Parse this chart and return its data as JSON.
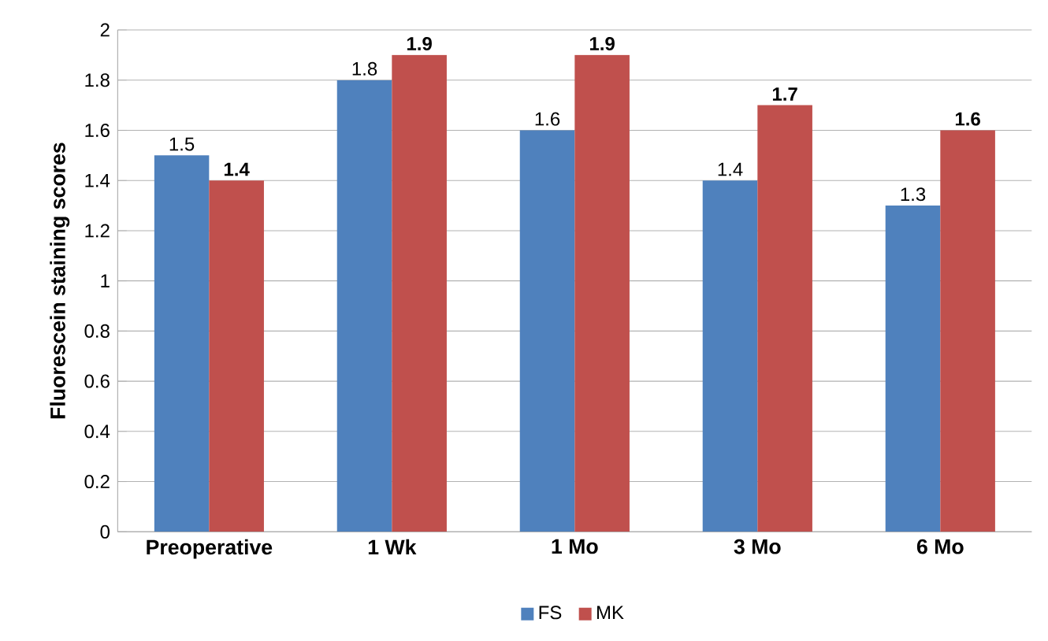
{
  "chart_data": {
    "type": "bar",
    "ylabel": "Fluorescein staining scores",
    "categories": [
      "Preoperative",
      "1 Wk",
      "1 Mo",
      "3 Mo",
      "6 Mo"
    ],
    "series": [
      {
        "name": "FS",
        "color": "#4f81bd",
        "values": [
          1.5,
          1.8,
          1.6,
          1.4,
          1.3
        ]
      },
      {
        "name": "MK",
        "color": "#c0504d",
        "values": [
          1.4,
          1.9,
          1.9,
          1.7,
          1.6
        ]
      }
    ],
    "ylim": [
      0,
      2
    ],
    "yticks": [
      0,
      0.2,
      0.4,
      0.6,
      0.8,
      1,
      1.2,
      1.4,
      1.6,
      1.8,
      2
    ],
    "grid": "y",
    "legend": "bottom",
    "data_labels": true
  }
}
